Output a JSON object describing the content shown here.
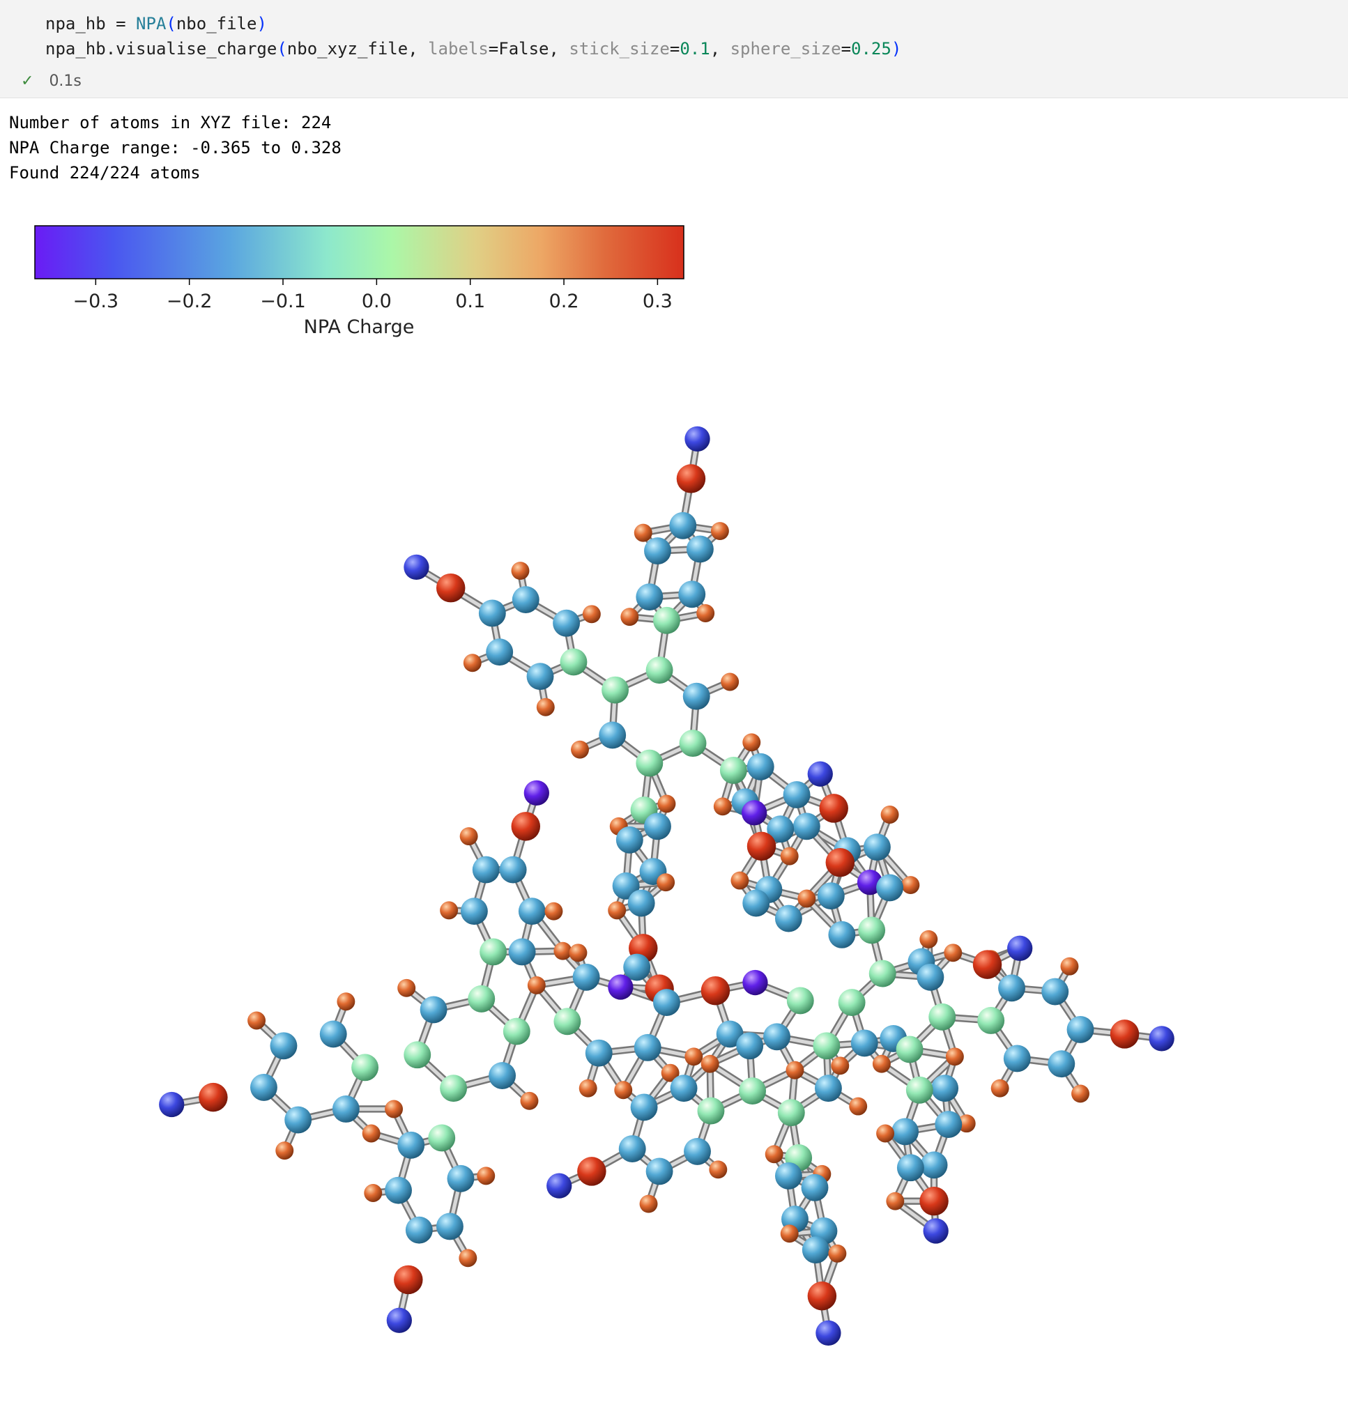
{
  "cell": {
    "code": [
      [
        "npa_hb = ",
        "NPA",
        "(",
        "nbo_file",
        ")"
      ],
      [
        "npa_hb.visualise_charge",
        "(",
        "nbo_xyz_file, ",
        "labels",
        "=False, ",
        "stick_size",
        "=",
        "0.1",
        ", ",
        "sphere_size",
        "=",
        "0.25",
        ")"
      ]
    ],
    "status": "0.1s"
  },
  "output": {
    "lines": [
      "Number of atoms in XYZ file: 224",
      "NPA Charge range: -0.365 to 0.328",
      "Found 224/224 atoms"
    ]
  },
  "chart_data": {
    "type": "colorbar",
    "xlim": [
      -0.365,
      0.328
    ],
    "xticks": [
      {
        "value": -0.3,
        "label": "−0.3"
      },
      {
        "value": -0.2,
        "label": "−0.2"
      },
      {
        "value": -0.1,
        "label": "−0.1"
      },
      {
        "value": 0,
        "label": "0.0"
      },
      0.1,
      0.2,
      0.3
    ],
    "xlabel": "NPA Charge"
  }
}
